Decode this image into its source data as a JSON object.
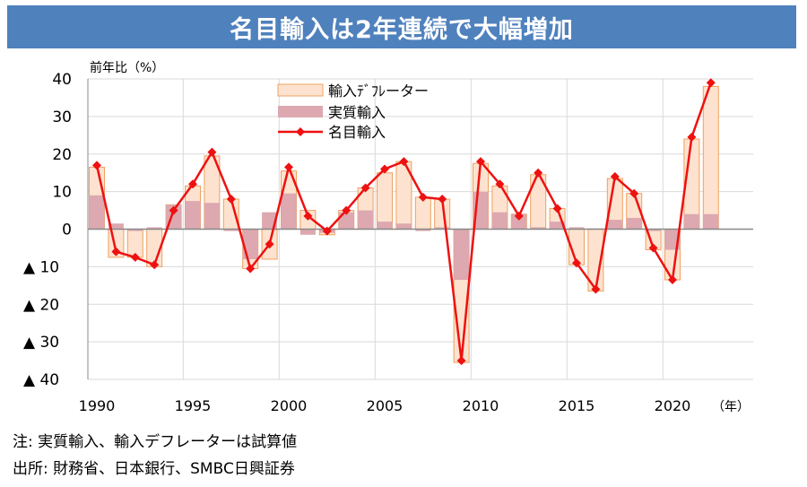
{
  "title": "名目輸入は2年連続で大幅増加",
  "notes": [
    "注: 実質輸入、輸入デフレーターは試算値",
    "出所: 財務省、日本銀行、SMBC日興証券"
  ],
  "chart_data": {
    "type": "bar",
    "ylabel": "前年比（%）",
    "xunit": "（年）",
    "ylim": [
      -40,
      40
    ],
    "yticks": [
      40,
      30,
      20,
      10,
      0,
      -10,
      -20,
      -30,
      -40
    ],
    "ytick_labels": [
      "40",
      "30",
      "20",
      "10",
      "0",
      "▲ 10",
      "▲ 20",
      "▲ 30",
      "▲ 40"
    ],
    "xtick_labels": [
      "1990",
      "1995",
      "2000",
      "2005",
      "2010",
      "2015",
      "2020"
    ],
    "legend": [
      "輸入ﾃﾞﾌﾚーター",
      "実質輸入",
      "名目輸入"
    ],
    "legend_position": "top-center",
    "grid": true,
    "x": [
      1990,
      1991,
      1992,
      1993,
      1994,
      1995,
      1996,
      1997,
      1998,
      1999,
      2000,
      2001,
      2002,
      2003,
      2004,
      2005,
      2006,
      2007,
      2008,
      2009,
      2010,
      2011,
      2012,
      2013,
      2014,
      2015,
      2016,
      2017,
      2018,
      2019,
      2020,
      2021,
      2022
    ],
    "series": [
      {
        "name": "輸入ﾃﾞﾌﾚーター",
        "type": "bar",
        "color": "#fde3cf",
        "edge": "#f0a060",
        "values": [
          7.5,
          -7.5,
          -7,
          -10,
          -1.5,
          4,
          12.5,
          8,
          -2.5,
          -8,
          6,
          5,
          -0.5,
          0.5,
          6,
          13,
          16.5,
          8.5,
          7.5,
          -22,
          7.5,
          7,
          -0.5,
          14,
          3.5,
          -9.5,
          -16.5,
          11,
          6.5,
          -5,
          -8,
          20,
          34
        ]
      },
      {
        "name": "実質輸入",
        "type": "bar",
        "color": "#dda8b0",
        "values": [
          9,
          1.5,
          -0.5,
          0.5,
          6.5,
          7.5,
          7,
          -0.5,
          -8,
          4.5,
          9.5,
          -1.5,
          -1,
          4.5,
          5,
          2,
          1.5,
          -0.5,
          0.5,
          -13.5,
          10,
          4.5,
          4,
          0.5,
          2,
          0.5,
          0.2,
          2.5,
          3,
          -0.5,
          -5.5,
          4,
          4
        ]
      },
      {
        "name": "名目輸入",
        "type": "line",
        "color": "#ee1111",
        "values": [
          17,
          -6,
          -7.5,
          -9.5,
          5,
          12,
          20.5,
          8,
          -10.5,
          -4,
          16.5,
          3.5,
          -0.5,
          5,
          11,
          16,
          18,
          8.5,
          8,
          -35,
          18,
          12,
          3.5,
          15,
          5.5,
          -9,
          -16,
          14,
          9.5,
          -5,
          -13.5,
          24.5,
          39
        ]
      }
    ]
  }
}
